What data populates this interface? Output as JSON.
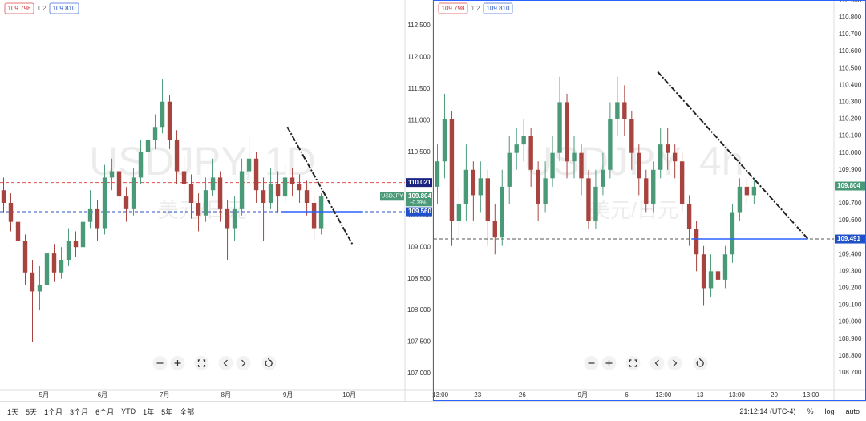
{
  "toolbar": {
    "ranges": [
      "1天",
      "5天",
      "1个月",
      "3个月",
      "6个月",
      "YTD",
      "1年",
      "5年",
      "全部"
    ],
    "time": "21:12:14 (UTC-4)",
    "scale_buttons": [
      "%",
      "log",
      "auto"
    ]
  },
  "chart_data": [
    {
      "type": "candlestick",
      "watermark": "USDJPY, 1D",
      "watermark_sub": "美元/日元",
      "bid": "109.798",
      "spread": "1.2",
      "ask": "109.810",
      "up_color": "#4a9a78",
      "down_color": "#a8443f",
      "xlim": [
        -0.5,
        55.6
      ],
      "xticks": [
        {
          "value": 5.6,
          "label": "5月"
        },
        {
          "value": 13.7,
          "label": "6月"
        },
        {
          "value": 22.3,
          "label": "7月"
        },
        {
          "value": 30.8,
          "label": "8月"
        },
        {
          "value": 39.4,
          "label": "9月"
        },
        {
          "value": 47.9,
          "label": "10月"
        }
      ],
      "ylim": [
        106.747,
        112.906
      ],
      "yticks": [
        {
          "value": 107,
          "label": "107.000"
        },
        {
          "value": 107.5,
          "label": "107.500"
        },
        {
          "value": 108,
          "label": "108.000"
        },
        {
          "value": 108.5,
          "label": "108.500"
        },
        {
          "value": 109,
          "label": "109.000"
        },
        {
          "value": 109.5,
          "label": "109.500"
        },
        {
          "value": 110,
          "label": "110.000"
        },
        {
          "value": 110.5,
          "label": "110.500"
        },
        {
          "value": 111,
          "label": "111.000"
        },
        {
          "value": 111.5,
          "label": "111.500"
        },
        {
          "value": 112,
          "label": "112.000"
        },
        {
          "value": 112.5,
          "label": "112.500"
        }
      ],
      "ohlc": [
        [
          109.9,
          110.1,
          109.55,
          109.7
        ],
        [
          109.7,
          109.85,
          109.25,
          109.4
        ],
        [
          109.4,
          109.55,
          108.95,
          109.1
        ],
        [
          109.1,
          109.2,
          108.4,
          108.6
        ],
        [
          108.6,
          108.8,
          107.5,
          108.3
        ],
        [
          108.3,
          108.7,
          108.0,
          108.4
        ],
        [
          108.4,
          109.1,
          108.3,
          108.9
        ],
        [
          108.9,
          109.05,
          108.45,
          108.6
        ],
        [
          108.6,
          109.0,
          108.5,
          108.8
        ],
        [
          108.8,
          109.3,
          108.7,
          109.1
        ],
        [
          109.1,
          109.25,
          108.85,
          109.0
        ],
        [
          109.0,
          109.6,
          108.9,
          109.4
        ],
        [
          109.4,
          109.9,
          109.3,
          109.6
        ],
        [
          109.6,
          109.75,
          109.1,
          109.3
        ],
        [
          109.3,
          110.3,
          109.2,
          110.1
        ],
        [
          110.1,
          110.4,
          109.9,
          110.2
        ],
        [
          110.2,
          110.3,
          109.65,
          109.8
        ],
        [
          109.8,
          109.95,
          109.4,
          109.6
        ],
        [
          109.6,
          110.25,
          109.5,
          110.1
        ],
        [
          110.1,
          110.7,
          110.0,
          110.5
        ],
        [
          110.5,
          110.95,
          110.35,
          110.7
        ],
        [
          110.7,
          111.1,
          110.55,
          110.9
        ],
        [
          110.9,
          111.65,
          110.8,
          111.3
        ],
        [
          111.3,
          111.4,
          110.55,
          110.7
        ],
        [
          110.7,
          110.85,
          110.0,
          110.2
        ],
        [
          110.2,
          110.45,
          109.85,
          110.0
        ],
        [
          110.0,
          110.15,
          109.45,
          109.7
        ],
        [
          109.7,
          109.85,
          109.25,
          109.5
        ],
        [
          109.5,
          110.1,
          109.4,
          109.9
        ],
        [
          109.9,
          110.4,
          109.8,
          110.1
        ],
        [
          110.1,
          110.2,
          109.4,
          109.6
        ],
        [
          109.6,
          109.75,
          108.8,
          109.3
        ],
        [
          109.3,
          109.8,
          109.1,
          109.6
        ],
        [
          109.6,
          110.4,
          109.5,
          110.2
        ],
        [
          110.2,
          110.75,
          110.05,
          110.4
        ],
        [
          110.4,
          110.5,
          109.7,
          109.9
        ],
        [
          109.9,
          110.1,
          109.1,
          109.7
        ],
        [
          109.7,
          110.25,
          109.6,
          110.0
        ],
        [
          110.0,
          110.2,
          109.55,
          109.8
        ],
        [
          109.8,
          110.3,
          109.7,
          110.1
        ],
        [
          110.1,
          110.25,
          109.8,
          110.0
        ],
        [
          110.0,
          110.15,
          109.7,
          109.9
        ],
        [
          109.9,
          110.05,
          109.5,
          109.7
        ],
        [
          109.7,
          109.8,
          109.1,
          109.3
        ],
        [
          109.3,
          109.85,
          109.2,
          109.8
        ]
      ],
      "hlines": [
        {
          "value": 110.021,
          "color": "#e05050",
          "dash": true
        },
        {
          "value": 109.56,
          "color": "#3050c0",
          "dash": true
        }
      ],
      "segments": [
        {
          "value": 109.56,
          "x": [
            38.5,
            49.8
          ],
          "color": "#2962ff"
        }
      ],
      "trendline": {
        "x": [
          39.3,
          48.4
        ],
        "y": [
          110.9,
          109.03
        ]
      },
      "price_tags": [
        {
          "value": 110.021,
          "label": "110.021",
          "color": "#1a237e"
        },
        {
          "value": 109.804,
          "label": "109.804",
          "color": "#4a9a78",
          "name": "USDJPY",
          "change": "+0.39%"
        },
        {
          "value": 109.56,
          "label": "109.560",
          "color": "#2050c8"
        }
      ]
    },
    {
      "type": "candlestick",
      "watermark": "USDJPY, 4h",
      "watermark_sub": "美元/日元",
      "bid": "109.798",
      "spread": "1.2",
      "ask": "109.810",
      "up_color": "#4a9a78",
      "down_color": "#a8443f",
      "xlim": [
        -0.5,
        55.1
      ],
      "xticks": [
        {
          "value": 0.4,
          "label": "13:00"
        },
        {
          "value": 5.6,
          "label": "23"
        },
        {
          "value": 11.8,
          "label": "26"
        },
        {
          "value": 20.2,
          "label": "9月"
        },
        {
          "value": 26.3,
          "label": "6"
        },
        {
          "value": 31.4,
          "label": "13:00"
        },
        {
          "value": 36.5,
          "label": "13"
        },
        {
          "value": 41.6,
          "label": "13:00"
        },
        {
          "value": 46.8,
          "label": "20"
        },
        {
          "value": 51.9,
          "label": "13:00"
        }
      ],
      "ylim": [
        108.6,
        110.904
      ],
      "yticks": [
        {
          "value": 108.7,
          "label": "108.700"
        },
        {
          "value": 108.8,
          "label": "108.800"
        },
        {
          "value": 108.9,
          "label": "108.900"
        },
        {
          "value": 109,
          "label": "109.000"
        },
        {
          "value": 109.1,
          "label": "109.100"
        },
        {
          "value": 109.2,
          "label": "109.200"
        },
        {
          "value": 109.3,
          "label": "109.300"
        },
        {
          "value": 109.4,
          "label": "109.400"
        },
        {
          "value": 109.5,
          "label": "109.500"
        },
        {
          "value": 109.6,
          "label": "109.600"
        },
        {
          "value": 109.7,
          "label": "109.700"
        },
        {
          "value": 109.8,
          "label": "109.800"
        },
        {
          "value": 109.9,
          "label": "109.900"
        },
        {
          "value": 110,
          "label": "110.000"
        },
        {
          "value": 110.1,
          "label": "110.100"
        },
        {
          "value": 110.2,
          "label": "110.200"
        },
        {
          "value": 110.3,
          "label": "110.300"
        },
        {
          "value": 110.4,
          "label": "110.400"
        },
        {
          "value": 110.5,
          "label": "110.500"
        },
        {
          "value": 110.6,
          "label": "110.600"
        },
        {
          "value": 110.7,
          "label": "110.700"
        },
        {
          "value": 110.8,
          "label": "110.800"
        },
        {
          "value": 110.9,
          "label": "110.900"
        }
      ],
      "ohlc": [
        [
          109.8,
          110.05,
          109.7,
          109.95
        ],
        [
          109.95,
          110.35,
          109.85,
          110.2
        ],
        [
          110.2,
          110.25,
          109.45,
          109.6
        ],
        [
          109.6,
          109.8,
          109.5,
          109.7
        ],
        [
          109.7,
          110.05,
          109.6,
          109.9
        ],
        [
          109.9,
          109.95,
          109.6,
          109.75
        ],
        [
          109.75,
          109.95,
          109.65,
          109.85
        ],
        [
          109.85,
          109.9,
          109.45,
          109.6
        ],
        [
          109.6,
          109.7,
          109.4,
          109.5
        ],
        [
          109.5,
          109.9,
          109.45,
          109.8
        ],
        [
          109.8,
          110.1,
          109.7,
          110.0
        ],
        [
          110.0,
          110.15,
          109.9,
          110.05
        ],
        [
          110.05,
          110.2,
          109.95,
          110.1
        ],
        [
          110.1,
          110.15,
          109.8,
          109.9
        ],
        [
          109.9,
          109.95,
          109.6,
          109.7
        ],
        [
          109.7,
          109.95,
          109.65,
          109.85
        ],
        [
          109.85,
          110.1,
          109.8,
          110.0
        ],
        [
          110.0,
          110.45,
          109.95,
          110.3
        ],
        [
          110.3,
          110.35,
          109.85,
          109.95
        ],
        [
          109.95,
          110.1,
          109.85,
          110.0
        ],
        [
          110.0,
          110.05,
          109.75,
          109.85
        ],
        [
          109.85,
          109.9,
          109.55,
          109.6
        ],
        [
          109.6,
          109.9,
          109.55,
          109.8
        ],
        [
          109.8,
          110.0,
          109.75,
          109.9
        ],
        [
          109.9,
          110.3,
          109.85,
          110.2
        ],
        [
          110.2,
          110.45,
          110.1,
          110.3
        ],
        [
          110.3,
          110.4,
          110.1,
          110.2
        ],
        [
          110.2,
          110.25,
          109.9,
          110.0
        ],
        [
          110.0,
          110.05,
          109.75,
          109.85
        ],
        [
          109.85,
          109.9,
          109.65,
          109.7
        ],
        [
          109.7,
          109.95,
          109.65,
          109.9
        ],
        [
          109.9,
          110.15,
          109.85,
          110.05
        ],
        [
          110.05,
          110.15,
          109.9,
          110.0
        ],
        [
          110.0,
          110.05,
          109.85,
          109.95
        ],
        [
          109.95,
          110.0,
          109.65,
          109.7
        ],
        [
          109.7,
          109.75,
          109.45,
          109.55
        ],
        [
          109.55,
          109.6,
          109.3,
          109.4
        ],
        [
          109.4,
          109.45,
          109.1,
          109.2
        ],
        [
          109.2,
          109.4,
          109.15,
          109.3
        ],
        [
          109.3,
          109.35,
          109.2,
          109.25
        ],
        [
          109.25,
          109.45,
          109.2,
          109.4
        ],
        [
          109.4,
          109.7,
          109.35,
          109.65
        ],
        [
          109.65,
          109.85,
          109.6,
          109.8
        ],
        [
          109.8,
          109.85,
          109.7,
          109.75
        ],
        [
          109.75,
          109.85,
          109.7,
          109.8
        ]
      ],
      "hlines": [
        {
          "value": 109.491,
          "color": "#555555",
          "dash": true
        }
      ],
      "segments": [
        {
          "value": 109.491,
          "x": [
            35.3,
            51.5
          ],
          "color": "#2962ff"
        }
      ],
      "trendline": {
        "x": [
          30.6,
          51.5
        ],
        "y": [
          110.48,
          109.491
        ]
      },
      "price_tags": [
        {
          "value": 109.804,
          "label": "109.804",
          "color": "#4a9a78"
        },
        {
          "value": 109.491,
          "label": "109.491",
          "color": "#2050c8"
        }
      ]
    }
  ]
}
